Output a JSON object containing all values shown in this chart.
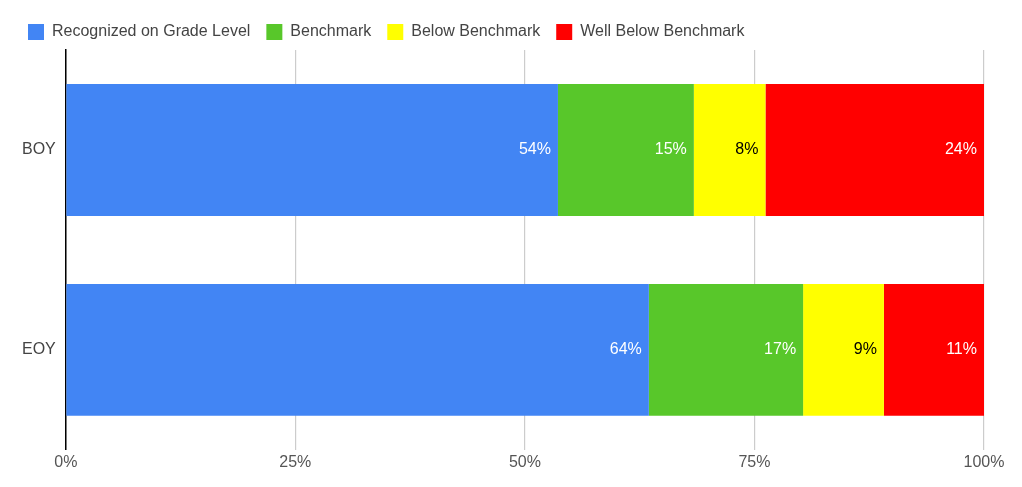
{
  "chart_data": {
    "type": "bar",
    "orientation": "horizontal",
    "stacked": true,
    "categories": [
      "BOY",
      "EOY"
    ],
    "series": [
      {
        "name": "Recognized on Grade Level",
        "color": "#4285f4",
        "values": [
          53.6,
          63.5
        ],
        "value_labels": [
          "54%",
          "64%"
        ]
      },
      {
        "name": "Benchmark",
        "color": "#58c72a",
        "values": [
          14.8,
          16.8
        ],
        "value_labels": [
          "15%",
          "17%"
        ]
      },
      {
        "name": "Below Benchmark",
        "color": "#ffff00",
        "values": [
          7.8,
          8.8
        ],
        "value_labels": [
          "8%",
          "9%"
        ]
      },
      {
        "name": "Well Below Benchmark",
        "color": "#ff0000",
        "values": [
          23.8,
          10.9
        ],
        "value_labels": [
          "24%",
          "11%"
        ]
      }
    ],
    "xlim": [
      0,
      100
    ],
    "xticks": [
      {
        "value": 0,
        "label": "0%"
      },
      {
        "value": 25,
        "label": "25%"
      },
      {
        "value": 50,
        "label": "50%"
      },
      {
        "value": 75,
        "label": "75%"
      },
      {
        "value": 100,
        "label": "100%"
      }
    ],
    "grid": "x",
    "legend": "top"
  }
}
